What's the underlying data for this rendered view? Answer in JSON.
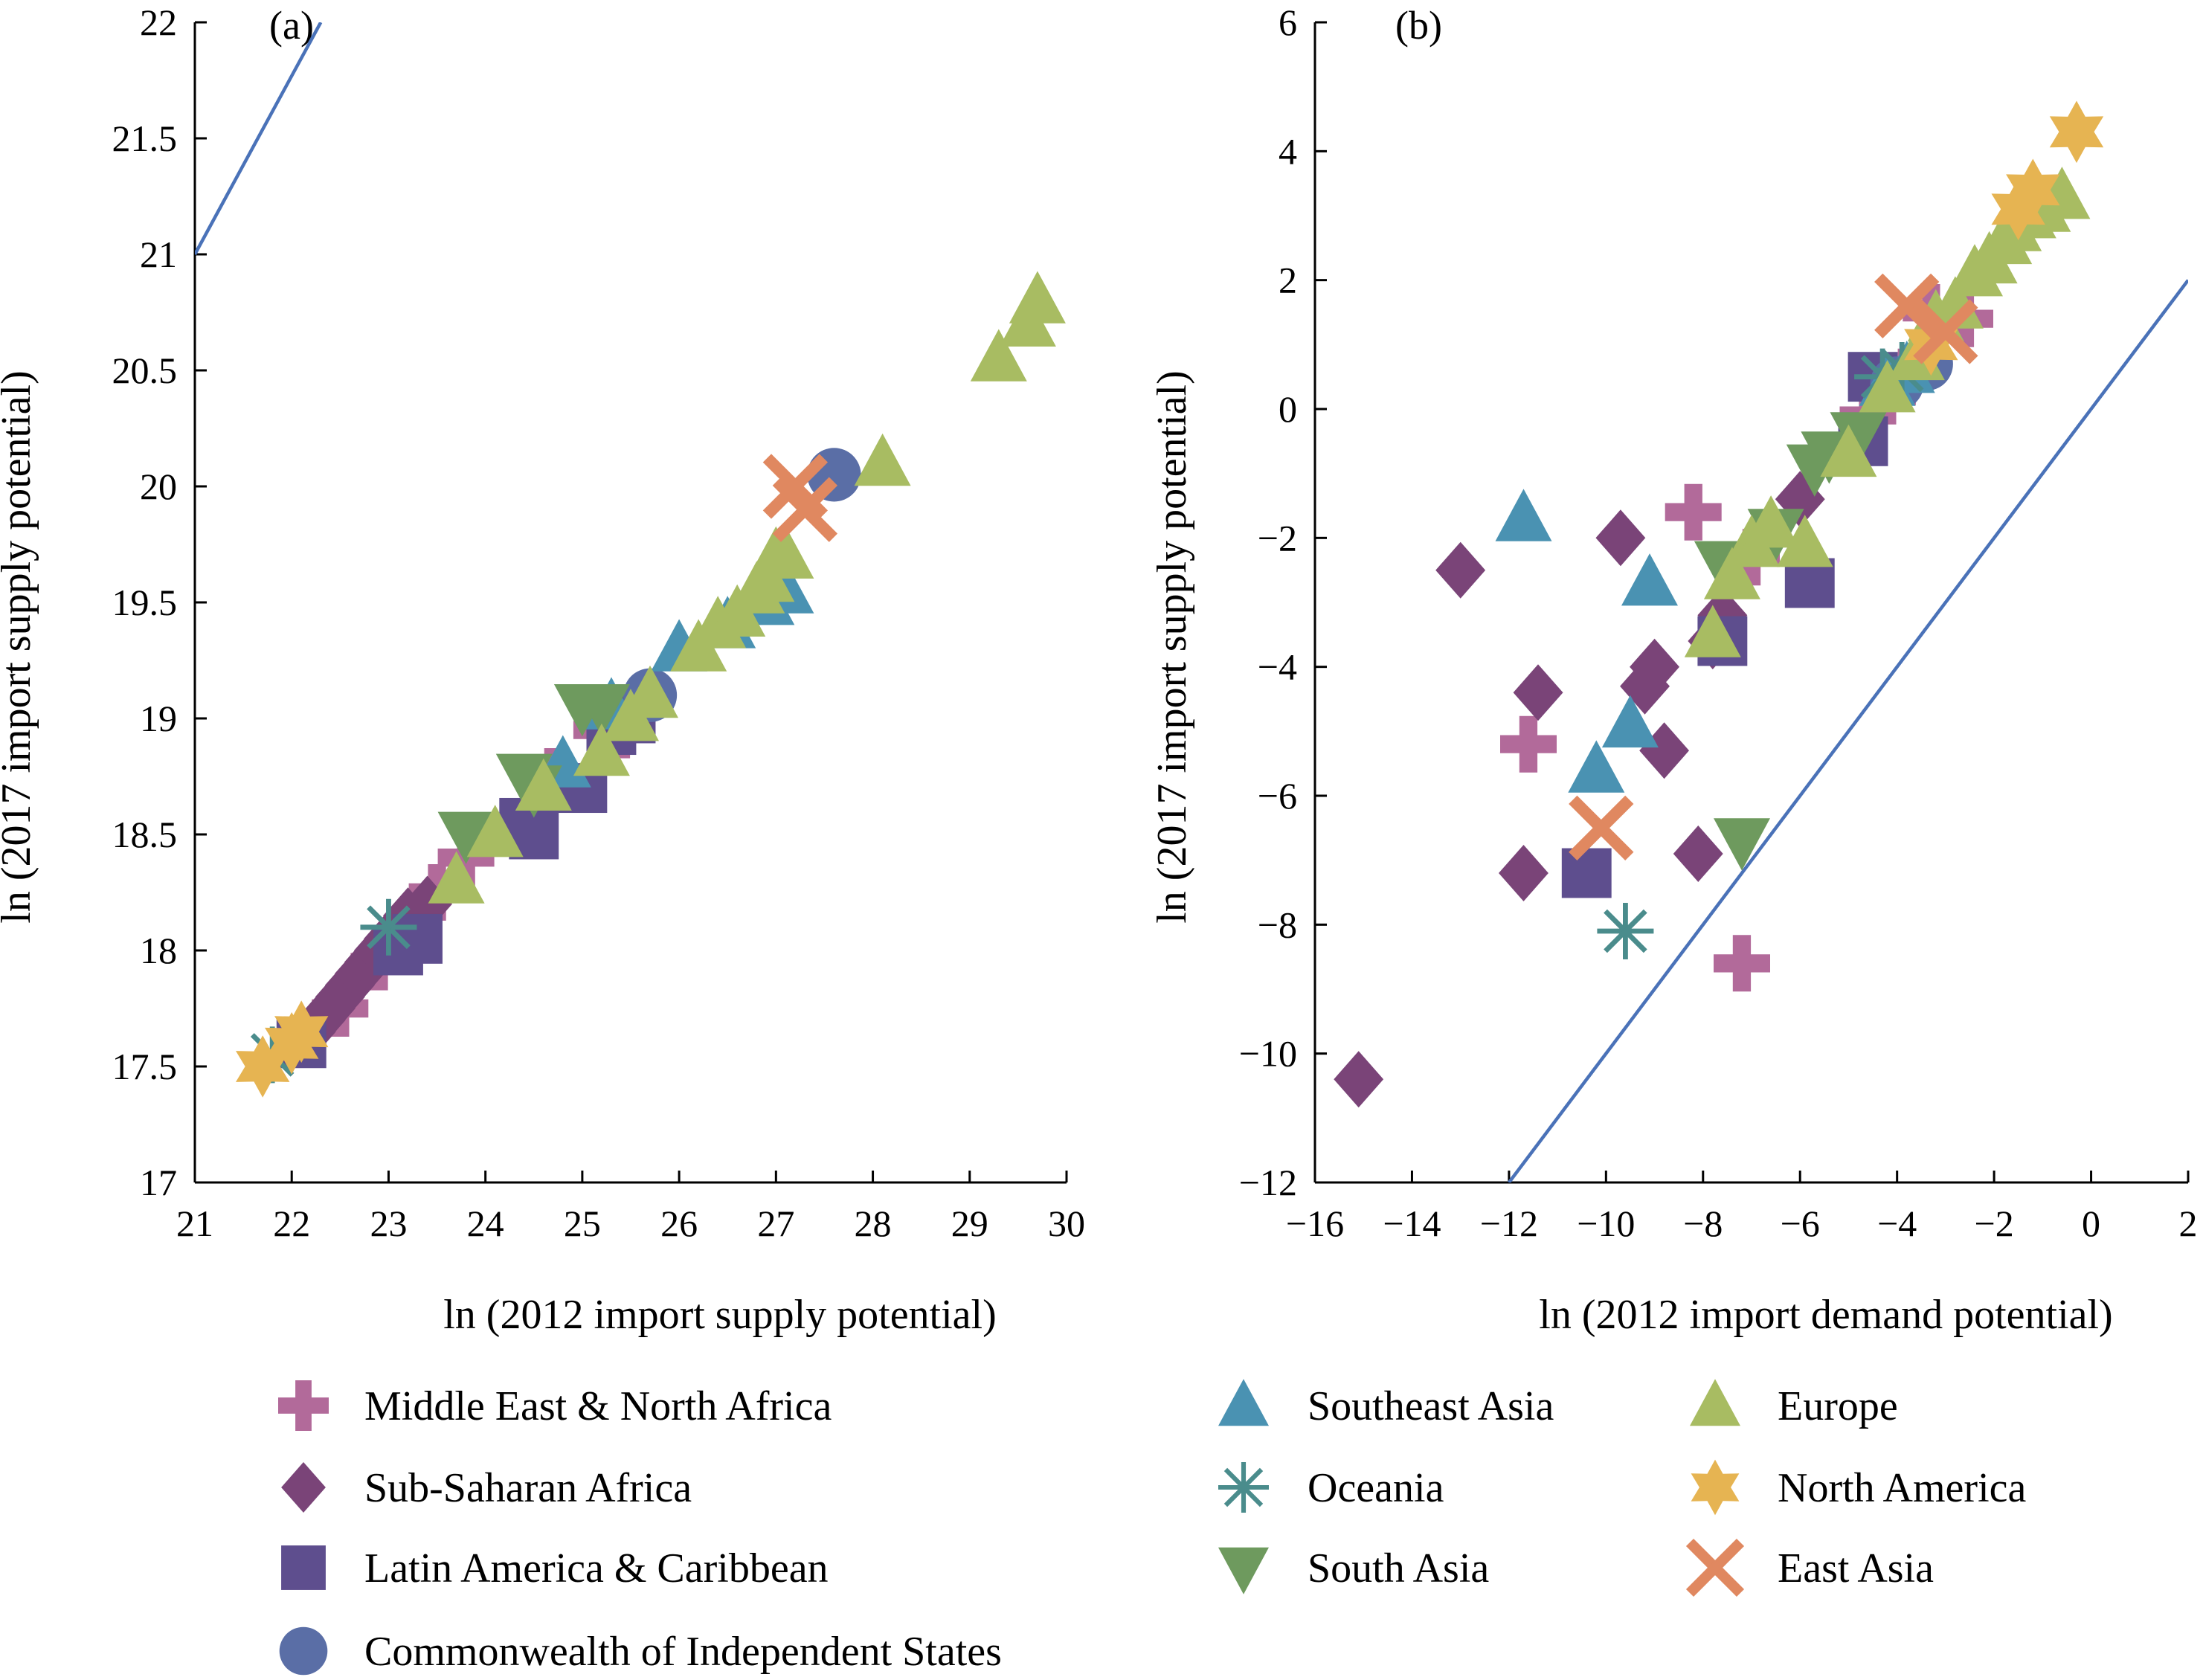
{
  "colors": {
    "mena": "#b26a9a",
    "ssa": "#7a4478",
    "lac": "#5e4e8e",
    "cis": "#5a6ea6",
    "sea": "#4a92b2",
    "oce": "#4a8c8c",
    "sas": "#6e9a5e",
    "eur": "#a8bc62",
    "nam": "#e6b452",
    "eas": "#e08860",
    "line": "#4a72b8"
  },
  "legend": [
    {
      "key": "mena",
      "label": "Middle East & North Africa",
      "marker": "plus-icon"
    },
    {
      "key": "ssa",
      "label": "Sub-Saharan Africa",
      "marker": "diamond-icon"
    },
    {
      "key": "lac",
      "label": "Latin America & Caribbean",
      "marker": "square-icon"
    },
    {
      "key": "cis",
      "label": "Commonwealth of Independent States",
      "marker": "circle-icon"
    },
    {
      "key": "sea",
      "label": "Southeast Asia",
      "marker": "triangle-up-icon"
    },
    {
      "key": "oce",
      "label": "Oceania",
      "marker": "asterisk-icon"
    },
    {
      "key": "sas",
      "label": "South Asia",
      "marker": "triangle-down-icon"
    },
    {
      "key": "eur",
      "label": "Europe",
      "marker": "triangle-up-icon"
    },
    {
      "key": "nam",
      "label": "North America",
      "marker": "star-icon"
    },
    {
      "key": "eas",
      "label": "East Asia",
      "marker": "x-cross-icon"
    }
  ],
  "chart_data": [
    {
      "type": "scatter",
      "title": "(a)",
      "xlabel": "ln (2012 import supply potential)",
      "ylabel": "ln (2017 import supply potential)",
      "xlim": [
        21,
        30
      ],
      "ylim": [
        17,
        22
      ],
      "xticks": [
        21,
        22,
        23,
        24,
        25,
        26,
        27,
        28,
        29,
        30
      ],
      "yticks": [
        17,
        17.5,
        18,
        18.5,
        19,
        19.5,
        20,
        20.5,
        21,
        21.5,
        22
      ],
      "reference_line": [
        [
          21,
          21
        ],
        [
          22.3,
          22
        ]
      ],
      "series": [
        {
          "key": "mena",
          "name": "Middle East & North Africa",
          "points": [
            [
              22.5,
              17.75
            ],
            [
              22.9,
              17.95
            ],
            [
              23.5,
              18.25
            ],
            [
              23.8,
              18.4
            ],
            [
              24.7,
              18.75
            ],
            [
              25.2,
              18.95
            ],
            [
              25.4,
              18.95
            ]
          ]
        },
        {
          "key": "ssa",
          "name": "Sub-Saharan Africa",
          "points": [
            [
              22.2,
              17.65
            ],
            [
              22.3,
              17.7
            ],
            [
              22.4,
              17.75
            ],
            [
              22.5,
              17.8
            ],
            [
              22.6,
              17.85
            ],
            [
              22.7,
              17.9
            ],
            [
              22.8,
              17.95
            ],
            [
              22.9,
              18.0
            ],
            [
              23.0,
              18.05
            ],
            [
              23.2,
              18.15
            ],
            [
              23.4,
              18.2
            ]
          ]
        },
        {
          "key": "lac",
          "name": "Latin America & Caribbean",
          "points": [
            [
              22.1,
              17.6
            ],
            [
              23.3,
              18.05
            ],
            [
              23.1,
              18.0
            ],
            [
              24.4,
              18.55
            ],
            [
              24.5,
              18.5
            ],
            [
              25.0,
              18.7
            ],
            [
              25.3,
              18.95
            ],
            [
              25.5,
              19.0
            ]
          ]
        },
        {
          "key": "cis",
          "name": "Commonwealth of Independent States",
          "points": [
            [
              25.7,
              19.1
            ],
            [
              27.6,
              20.05
            ]
          ]
        },
        {
          "key": "sea",
          "name": "Southeast Asia",
          "points": [
            [
              24.8,
              18.8
            ],
            [
              25.3,
              19.05
            ],
            [
              26.0,
              19.3
            ],
            [
              26.5,
              19.4
            ],
            [
              26.9,
              19.5
            ],
            [
              27.1,
              19.55
            ]
          ]
        },
        {
          "key": "oce",
          "name": "Oceania",
          "points": [
            [
              21.8,
              17.55
            ],
            [
              23.0,
              18.1
            ]
          ]
        },
        {
          "key": "sas",
          "name": "South Asia",
          "points": [
            [
              23.8,
              18.5
            ],
            [
              24.4,
              18.75
            ],
            [
              24.5,
              18.7
            ],
            [
              25.0,
              19.05
            ],
            [
              25.2,
              19.05
            ]
          ]
        },
        {
          "key": "eur",
          "name": "Europe",
          "points": [
            [
              23.7,
              18.3
            ],
            [
              24.1,
              18.5
            ],
            [
              24.6,
              18.7
            ],
            [
              25.2,
              18.85
            ],
            [
              25.5,
              19.0
            ],
            [
              25.7,
              19.1
            ],
            [
              26.2,
              19.3
            ],
            [
              26.4,
              19.4
            ],
            [
              26.6,
              19.45
            ],
            [
              26.8,
              19.55
            ],
            [
              26.9,
              19.6
            ],
            [
              27.0,
              19.7
            ],
            [
              27.1,
              19.7
            ],
            [
              28.1,
              20.1
            ],
            [
              29.3,
              20.55
            ],
            [
              29.6,
              20.7
            ],
            [
              29.7,
              20.8
            ]
          ]
        },
        {
          "key": "nam",
          "name": "North America",
          "points": [
            [
              21.7,
              17.5
            ],
            [
              22.0,
              17.6
            ],
            [
              22.1,
              17.65
            ]
          ]
        },
        {
          "key": "eas",
          "name": "East Asia",
          "points": [
            [
              27.2,
              20.0
            ],
            [
              27.3,
              19.9
            ]
          ]
        }
      ]
    },
    {
      "type": "scatter",
      "title": "(b)",
      "xlabel": "ln (2012 import demand potential)",
      "ylabel": "ln (2017 import supply potential)",
      "xlim": [
        -16,
        2
      ],
      "ylim": [
        -12,
        6
      ],
      "xticks": [
        -16,
        -14,
        -12,
        -10,
        -8,
        -6,
        -4,
        -2,
        0,
        2
      ],
      "xtick_labels": [
        "−16",
        "−14",
        "−12",
        "−10",
        "−8",
        "−6",
        "−4",
        "−2",
        "0",
        "2"
      ],
      "yticks": [
        -12,
        -10,
        -8,
        -6,
        -4,
        -2,
        0,
        2,
        4,
        6
      ],
      "ytick_labels": [
        "−12",
        "−10",
        "−8",
        "−6",
        "−4",
        "−2",
        "0",
        "2",
        "4",
        "6"
      ],
      "reference_line": [
        [
          -12,
          -12
        ],
        [
          2,
          2
        ]
      ],
      "series": [
        {
          "key": "mena",
          "name": "Middle East & North Africa",
          "points": [
            [
              -11.6,
              -5.2
            ],
            [
              -8.2,
              -1.6
            ],
            [
              -7.2,
              -8.6
            ],
            [
              -7.0,
              -2.3
            ],
            [
              -4.6,
              -0.1
            ],
            [
              -3.8,
              0.5
            ],
            [
              -3.3,
              1.5
            ],
            [
              -2.6,
              1.4
            ]
          ]
        },
        {
          "key": "ssa",
          "name": "Sub-Saharan Africa",
          "points": [
            [
              -15.1,
              -10.4
            ],
            [
              -13.0,
              -2.5
            ],
            [
              -11.4,
              -4.4
            ],
            [
              -11.7,
              -7.2
            ],
            [
              -9.7,
              -2.0
            ],
            [
              -8.1,
              -6.9
            ],
            [
              -9.0,
              -4.0
            ],
            [
              -9.2,
              -4.3
            ],
            [
              -8.8,
              -5.3
            ],
            [
              -7.8,
              -3.6
            ],
            [
              -7.6,
              -3.2
            ],
            [
              -6.0,
              -1.4
            ],
            [
              -4.8,
              -0.6
            ]
          ]
        },
        {
          "key": "lac",
          "name": "Latin America & Caribbean",
          "points": [
            [
              -10.4,
              -7.2
            ],
            [
              -7.6,
              -3.6
            ],
            [
              -5.8,
              -2.7
            ],
            [
              -4.7,
              -0.5
            ],
            [
              -4.5,
              0.5
            ]
          ]
        },
        {
          "key": "cis",
          "name": "Commonwealth of Independent States",
          "points": [
            [
              -3.4,
              0.7
            ],
            [
              -4.0,
              0.4
            ]
          ]
        },
        {
          "key": "sea",
          "name": "Southeast Asia",
          "points": [
            [
              -11.7,
              -1.7
            ],
            [
              -9.1,
              -2.7
            ],
            [
              -9.5,
              -4.9
            ],
            [
              -10.2,
              -5.6
            ],
            [
              -4.2,
              0.4
            ],
            [
              -3.8,
              0.6
            ]
          ]
        },
        {
          "key": "oce",
          "name": "Oceania",
          "points": [
            [
              -9.6,
              -8.1
            ],
            [
              -4.3,
              0.5
            ],
            [
              -3.9,
              0.6
            ]
          ]
        },
        {
          "key": "sas",
          "name": "South Asia",
          "points": [
            [
              -7.2,
              -6.7
            ],
            [
              -7.6,
              -2.4
            ],
            [
              -6.5,
              -1.9
            ],
            [
              -5.7,
              -0.9
            ],
            [
              -5.4,
              -0.7
            ],
            [
              -4.8,
              -0.4
            ]
          ]
        },
        {
          "key": "eur",
          "name": "Europe",
          "points": [
            [
              -7.8,
              -3.5
            ],
            [
              -7.4,
              -2.6
            ],
            [
              -7.0,
              -2.1
            ],
            [
              -6.6,
              -1.8
            ],
            [
              -5.9,
              -2.1
            ],
            [
              -5.0,
              -0.7
            ],
            [
              -4.2,
              0.3
            ],
            [
              -3.6,
              0.8
            ],
            [
              -3.2,
              1.4
            ],
            [
              -2.8,
              1.6
            ],
            [
              -2.4,
              2.1
            ],
            [
              -2.1,
              2.3
            ],
            [
              -1.8,
              2.6
            ],
            [
              -1.6,
              2.8
            ],
            [
              -1.3,
              3.0
            ],
            [
              -1.0,
              3.1
            ],
            [
              -0.6,
              3.3
            ]
          ]
        },
        {
          "key": "nam",
          "name": "North America",
          "points": [
            [
              -3.3,
              1.0
            ],
            [
              -1.5,
              3.1
            ],
            [
              -1.2,
              3.4
            ],
            [
              -0.3,
              4.3
            ]
          ]
        },
        {
          "key": "eas",
          "name": "East Asia",
          "points": [
            [
              -10.1,
              -6.5
            ],
            [
              -3.8,
              1.6
            ],
            [
              -3.0,
              1.2
            ]
          ]
        }
      ]
    }
  ]
}
